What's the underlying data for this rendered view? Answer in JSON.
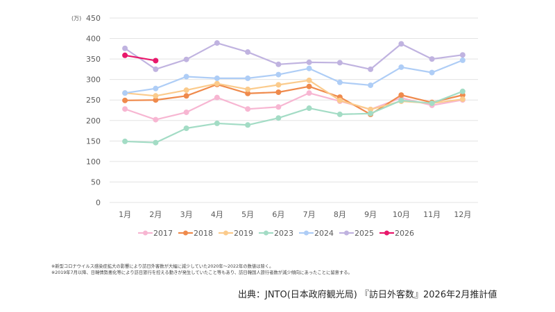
{
  "chart_data": {
    "type": "line",
    "title": "",
    "xlabel": "",
    "ylabel": "",
    "y_unit_label": "(万)",
    "ylim": [
      0,
      450
    ],
    "y_ticks": [
      0,
      50,
      100,
      150,
      200,
      250,
      300,
      350,
      400,
      450
    ],
    "grid": true,
    "legend_position": "bottom",
    "categories": [
      "1月",
      "2月",
      "3月",
      "4月",
      "5月",
      "6月",
      "7月",
      "8月",
      "9月",
      "10月",
      "11月",
      "12月"
    ],
    "series": [
      {
        "name": "2017",
        "color": "#f7b6d2",
        "values": [
          228,
          202,
          220,
          256,
          228,
          233,
          267,
          247,
          227,
          255,
          237,
          250
        ]
      },
      {
        "name": "2018",
        "color": "#ef8a4c",
        "values": [
          249,
          250,
          260,
          288,
          266,
          269,
          283,
          257,
          215,
          262,
          244,
          262
        ]
      },
      {
        "name": "2019",
        "color": "#fbcb8c",
        "values": [
          267,
          260,
          274,
          290,
          276,
          287,
          298,
          249,
          227,
          247,
          242,
          252
        ]
      },
      {
        "name": "2023",
        "color": "#a3dcc5",
        "values": [
          149,
          146,
          181,
          193,
          189,
          206,
          230,
          215,
          217,
          249,
          242,
          271
        ]
      },
      {
        "name": "2024",
        "color": "#aecdf6",
        "values": [
          267,
          278,
          307,
          303,
          303,
          312,
          327,
          293,
          286,
          330,
          317,
          347
        ]
      },
      {
        "name": "2025",
        "color": "#c0b3e0",
        "values": [
          376,
          325,
          349,
          389,
          367,
          337,
          342,
          341,
          325,
          387,
          350,
          360
        ]
      },
      {
        "name": "2026",
        "color": "#e8186b",
        "values": [
          359,
          346
        ]
      }
    ]
  },
  "notes": [
    "※新型コロナウイルス感染症拡大の影響により訪日外客数が大幅に減少していた2020年～2022年の数値は除く。",
    "※2019年7月以降、日韓情勢悪化等により訪日旅行を控える動きが発生していたこと等もあり、訪日韓国人旅行者数が減少傾向にあったことに留意する。"
  ],
  "source": "出典：JNTO(日本政府観光局) 『訪日外客数』2026年2月推計値"
}
